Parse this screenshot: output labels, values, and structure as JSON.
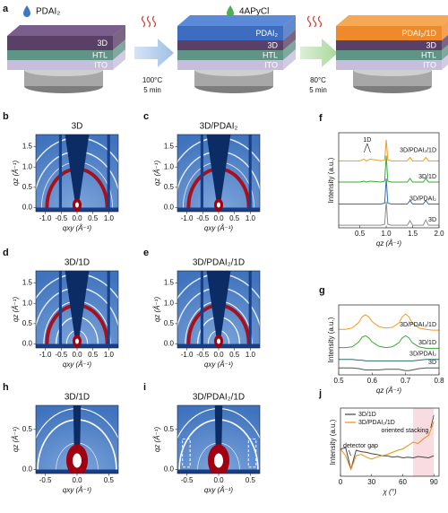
{
  "schematic": {
    "label": "a",
    "reagents": [
      "PDAI₂",
      "4APyCl"
    ],
    "stacks": [
      {
        "layers": [
          "3D",
          "HTL",
          "ITO"
        ]
      },
      {
        "layers": [
          "PDAI₂",
          "3D",
          "HTL",
          "ITO"
        ]
      },
      {
        "layers": [
          "PDAI₂/1D",
          "3D",
          "HTL",
          "ITO"
        ]
      }
    ],
    "steps": [
      {
        "temperature": "100°C",
        "time": "5 min"
      },
      {
        "temperature": "80°C",
        "time": "5 min"
      }
    ]
  },
  "giwaxs": [
    {
      "label": "b",
      "title": "3D",
      "xlabel": "qxy (Å⁻¹)",
      "ylabel": "qz (Å⁻¹)",
      "xlim": [
        -1.3,
        1.3
      ],
      "ylim": [
        -0.1,
        1.8
      ],
      "xticks": [
        {
          "value": -1,
          "label": "-1.0"
        },
        -0.5,
        {
          "value": 0,
          "label": "0.0"
        },
        0.5,
        {
          "value": 1,
          "label": "1.0"
        }
      ],
      "yticks": [
        {
          "value": 0,
          "label": "0.0"
        },
        0.5,
        {
          "value": 1,
          "label": "1.0"
        },
        1.5
      ]
    },
    {
      "label": "c",
      "title": "3D/PDAI₂",
      "xlabel": "qxy (Å⁻¹)",
      "ylabel": "qz (Å⁻¹)",
      "xlim": [
        -1.3,
        1.3
      ],
      "ylim": [
        -0.1,
        1.8
      ],
      "xticks": [
        {
          "value": -1,
          "label": "-1.0"
        },
        -0.5,
        {
          "value": 0,
          "label": "0.0"
        },
        0.5,
        {
          "value": 1,
          "label": "1.0"
        }
      ],
      "yticks": [
        {
          "value": 0,
          "label": "0.0"
        },
        0.5,
        {
          "value": 1,
          "label": "1.0"
        },
        1.5
      ]
    },
    {
      "label": "d",
      "title": "3D/1D",
      "xlabel": "qxy (Å⁻¹)",
      "ylabel": "qz (Å⁻¹)",
      "xlim": [
        -1.3,
        1.3
      ],
      "ylim": [
        -0.1,
        1.8
      ],
      "xticks": [
        {
          "value": -1,
          "label": "-1.0"
        },
        -0.5,
        {
          "value": 0,
          "label": "0.0"
        },
        0.5,
        {
          "value": 1,
          "label": "1.0"
        }
      ],
      "yticks": [
        {
          "value": 0,
          "label": "0.0"
        },
        0.5,
        {
          "value": 1,
          "label": "1.0"
        },
        1.5
      ]
    },
    {
      "label": "e",
      "title": "3D/PDAI₂/1D",
      "xlabel": "qxy (Å⁻¹)",
      "ylabel": "qz (Å⁻¹)",
      "xlim": [
        -1.3,
        1.3
      ],
      "ylim": [
        -0.1,
        1.8
      ],
      "xticks": [
        {
          "value": -1,
          "label": "-1.0"
        },
        -0.5,
        {
          "value": 0,
          "label": "0.0"
        },
        0.5,
        {
          "value": 1,
          "label": "1.0"
        }
      ],
      "yticks": [
        {
          "value": 0,
          "label": "0.0"
        },
        0.5,
        {
          "value": 1,
          "label": "1.0"
        },
        1.5
      ]
    },
    {
      "label": "h",
      "title": "3D/1D",
      "xlabel": "qxy (Å⁻¹)",
      "ylabel": "qz (Å⁻¹)",
      "xlim": [
        -0.65,
        0.65
      ],
      "ylim": [
        -0.05,
        0.8
      ],
      "xticks": [
        -0.5,
        {
          "value": 0,
          "label": "0.0"
        },
        0.5
      ],
      "yticks": [
        {
          "value": 0,
          "label": "0.0"
        },
        0.5
      ]
    },
    {
      "label": "i",
      "title": "3D/PDAI₂/1D",
      "xlabel": "qxy (Å⁻¹)",
      "ylabel": "qz (Å⁻¹)",
      "xlim": [
        -0.65,
        0.65
      ],
      "ylim": [
        -0.05,
        0.8
      ],
      "xticks": [
        -0.5,
        {
          "value": 0,
          "label": "0.0"
        },
        0.5
      ],
      "yticks": [
        {
          "value": 0,
          "label": "0.0"
        },
        0.5
      ]
    }
  ],
  "chart_data": [
    {
      "type": "line",
      "label": "f",
      "xlabel": "qz (Å⁻¹)",
      "ylabel": "Intensity (a.u.)",
      "annotations": [
        "1D"
      ],
      "x": [
        0.1,
        0.3,
        0.5,
        0.58,
        0.62,
        0.7,
        0.9,
        0.97,
        1.0,
        1.03,
        1.1,
        1.3,
        1.4,
        1.45,
        1.5,
        1.7,
        1.75,
        1.8,
        2.0
      ],
      "xlim": [
        0.1,
        2.0
      ],
      "xticks": [
        0.5,
        {
          "value": 1,
          "label": "1.0"
        },
        1.5,
        {
          "value": 2,
          "label": "2.0"
        }
      ],
      "ylim": [
        0,
        10.8
      ],
      "series": [
        {
          "name": "3D",
          "color": "#8c8c8c",
          "values": [
            0.3,
            0.3,
            0.3,
            0.3,
            0.3,
            0.3,
            0.3,
            0.4,
            3.0,
            0.4,
            0.3,
            0.3,
            0.3,
            0.8,
            0.3,
            0.3,
            0.9,
            0.3,
            0.3
          ]
        },
        {
          "name": "3D/PDAI₂",
          "color": "#2f6fb0",
          "values": [
            2.7,
            2.7,
            2.7,
            2.7,
            2.7,
            2.7,
            2.7,
            2.8,
            5.6,
            2.8,
            2.7,
            2.7,
            2.7,
            3.1,
            2.7,
            2.7,
            3.1,
            2.7,
            2.7
          ]
        },
        {
          "name": "3D/1D",
          "color": "#3aaa35",
          "values": [
            5.2,
            5.2,
            5.2,
            5.3,
            5.2,
            5.3,
            5.2,
            5.3,
            8.2,
            5.3,
            5.2,
            5.2,
            5.2,
            5.6,
            5.2,
            5.2,
            5.6,
            5.2,
            5.2
          ]
        },
        {
          "name": "3D/PDAI₂/1D",
          "color": "#f39a1e",
          "values": [
            7.6,
            7.6,
            7.6,
            7.8,
            7.6,
            7.8,
            7.6,
            7.7,
            10.0,
            7.7,
            7.6,
            7.6,
            7.6,
            8.0,
            7.6,
            7.6,
            8.0,
            7.6,
            7.6
          ]
        }
      ]
    },
    {
      "type": "line",
      "label": "g",
      "xlabel": "qz (Å⁻¹)",
      "ylabel": "Intensity (a.u.)",
      "x": [
        0.5,
        0.52,
        0.54,
        0.56,
        0.57,
        0.58,
        0.59,
        0.6,
        0.62,
        0.64,
        0.66,
        0.68,
        0.69,
        0.7,
        0.71,
        0.72,
        0.74,
        0.76,
        0.78,
        0.8
      ],
      "xlim": [
        0.5,
        0.8
      ],
      "xticks": [
        0.5,
        0.6,
        0.7,
        0.8
      ],
      "ylim": [
        0,
        10
      ],
      "series": [
        {
          "name": "3D",
          "color": "#555555",
          "values": [
            1.0,
            1.0,
            1.0,
            0.9,
            0.8,
            0.7,
            0.7,
            0.7,
            0.7,
            0.8,
            0.8,
            0.8,
            0.7,
            0.6,
            0.6,
            0.7,
            0.9,
            1.0,
            1.0,
            1.0
          ]
        },
        {
          "name": "3D/PDAI₂",
          "color": "#2a6f6a",
          "values": [
            2.2,
            2.2,
            2.2,
            2.1,
            2.1,
            2.0,
            2.0,
            2.0,
            2.0,
            2.0,
            2.0,
            2.0,
            2.0,
            2.0,
            2.0,
            2.0,
            2.1,
            2.2,
            2.2,
            2.2
          ]
        },
        {
          "name": "3D/1D",
          "color": "#3aaa35",
          "values": [
            3.9,
            3.9,
            4.0,
            4.7,
            5.4,
            5.6,
            5.3,
            4.7,
            4.1,
            3.9,
            4.0,
            4.6,
            5.3,
            5.6,
            5.3,
            4.6,
            4.0,
            3.8,
            3.8,
            3.8
          ]
        },
        {
          "name": "3D/PDAI₂/1D",
          "color": "#f39a1e",
          "values": [
            6.5,
            6.5,
            6.7,
            7.5,
            8.3,
            8.6,
            8.3,
            7.6,
            6.9,
            6.7,
            6.8,
            7.4,
            8.3,
            8.7,
            8.3,
            7.4,
            6.7,
            6.5,
            6.4,
            6.4
          ]
        }
      ]
    },
    {
      "type": "line",
      "label": "j",
      "xlabel": "χ (°)",
      "ylabel": "Intensity (a.u.)",
      "annotations": [
        "oriented stacking",
        "detector gap"
      ],
      "legend": "top-left",
      "highlight_range": [
        70,
        90
      ],
      "highlight_color": "#f7d3da",
      "x": [
        0,
        5,
        10,
        15,
        20,
        25,
        30,
        35,
        40,
        45,
        50,
        55,
        60,
        65,
        70,
        75,
        80,
        85,
        90
      ],
      "xlim": [
        0,
        95
      ],
      "xticks": [
        0,
        30,
        60,
        90
      ],
      "ylim": [
        0,
        10
      ],
      "series": [
        {
          "name": "3D/1D",
          "color": "#444444",
          "values": [
            4.0,
            4.2,
            1.0,
            3.8,
            3.6,
            3.5,
            3.3,
            3.2,
            3.0,
            3.0,
            2.8,
            2.9,
            2.7,
            2.8,
            2.7,
            2.9,
            2.8,
            2.7,
            3.0
          ]
        },
        {
          "name": "3D/PDAI₂/1D",
          "color": "#e8900f",
          "values": [
            4.0,
            3.0,
            1.0,
            3.0,
            3.2,
            2.8,
            2.5,
            2.8,
            3.0,
            3.2,
            3.5,
            3.8,
            4.0,
            4.5,
            5.0,
            4.8,
            5.5,
            6.0,
            8.0
          ]
        }
      ]
    }
  ]
}
